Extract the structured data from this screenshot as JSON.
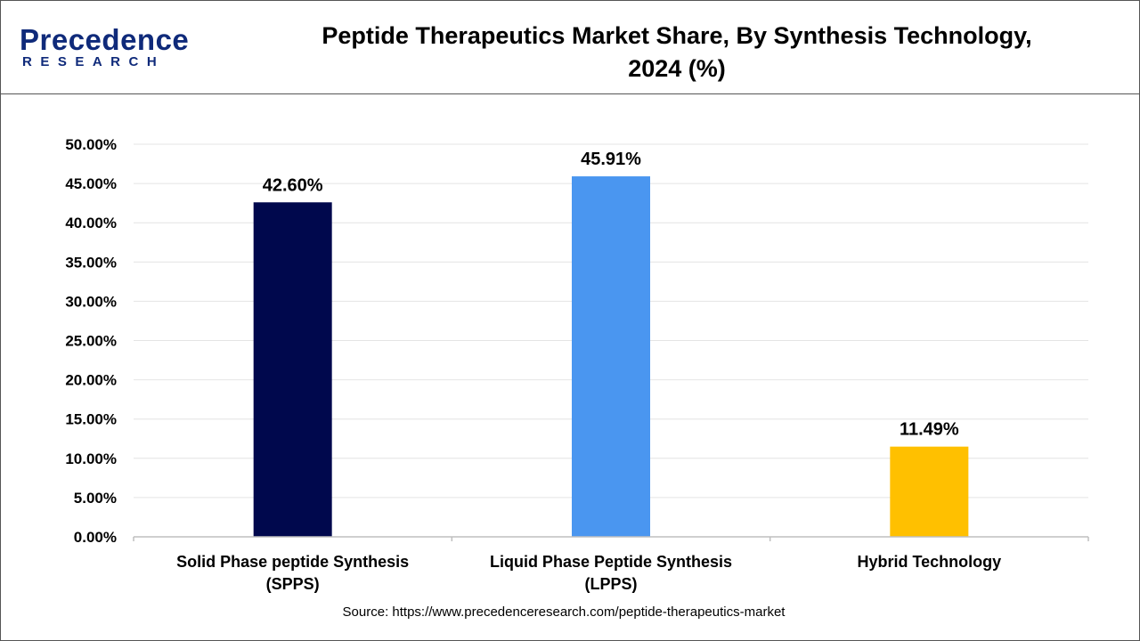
{
  "header": {
    "logo_word": "Precedence",
    "logo_sub": "RESEARCH",
    "title_line1": "Peptide Therapeutics Market Share, By Synthesis Technology,",
    "title_line2": "2024 (%)"
  },
  "source": "Source: https://www.precedenceresearch.com/peptide-therapeutics-market",
  "chart_data": {
    "type": "bar",
    "title": "Peptide Therapeutics Market Share, By Synthesis Technology, 2024 (%)",
    "categories": [
      [
        "Solid Phase peptide Synthesis",
        "(SPPS)"
      ],
      [
        "Liquid Phase Peptide Synthesis",
        "(LPPS)"
      ],
      [
        "Hybrid Technology"
      ]
    ],
    "values": [
      42.6,
      45.91,
      11.49
    ],
    "value_labels": [
      "42.60%",
      "45.91%",
      "11.49%"
    ],
    "colors": [
      "#00084d",
      "#4a96f0",
      "#ffc000"
    ],
    "yticks": [
      "0.00%",
      "5.00%",
      "10.00%",
      "15.00%",
      "20.00%",
      "25.00%",
      "30.00%",
      "35.00%",
      "40.00%",
      "45.00%",
      "50.00%"
    ],
    "ylim": [
      0,
      50
    ],
    "grid": true,
    "xlabel": "",
    "ylabel": ""
  }
}
